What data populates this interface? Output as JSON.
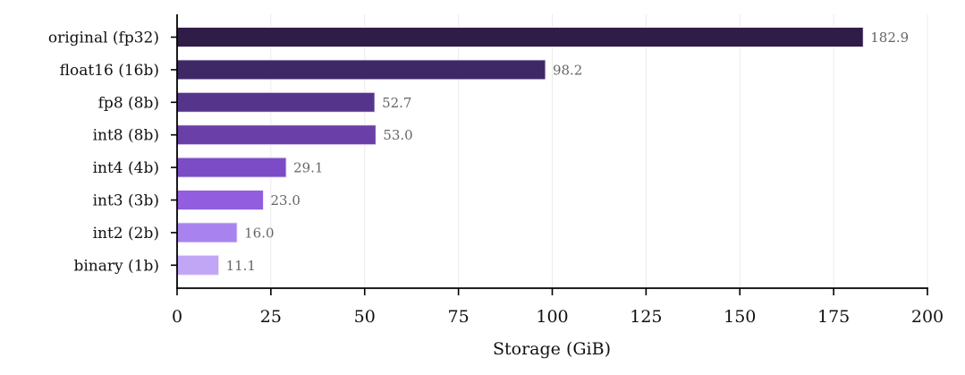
{
  "chart_data": {
    "type": "bar",
    "orientation": "horizontal",
    "title": "",
    "xlabel": "Storage (GiB)",
    "ylabel": "",
    "xlim": [
      0,
      200
    ],
    "xticks": [
      0,
      25,
      50,
      75,
      100,
      125,
      150,
      175,
      200
    ],
    "xtick_labels": [
      "0",
      "25",
      "50",
      "75",
      "100",
      "125",
      "150",
      "175",
      "200"
    ],
    "grid": "vertical",
    "categories": [
      "original (fp32)",
      "float16 (16b)",
      "fp8 (8b)",
      "int8 (8b)",
      "int4 (4b)",
      "int3 (3b)",
      "int2 (2b)",
      "binary (1b)"
    ],
    "values": [
      182.9,
      98.2,
      52.7,
      53.0,
      29.1,
      23.0,
      16.0,
      11.1
    ],
    "value_labels": [
      "182.9",
      "98.2",
      "52.7",
      "53.0",
      "29.1",
      "23.0",
      "16.0",
      "11.1"
    ],
    "colors": [
      "#2f1d47",
      "#3e2866",
      "#55358c",
      "#6a40a8",
      "#7b4cc5",
      "#925ddf",
      "#a883ef",
      "#c2a6f6"
    ]
  }
}
